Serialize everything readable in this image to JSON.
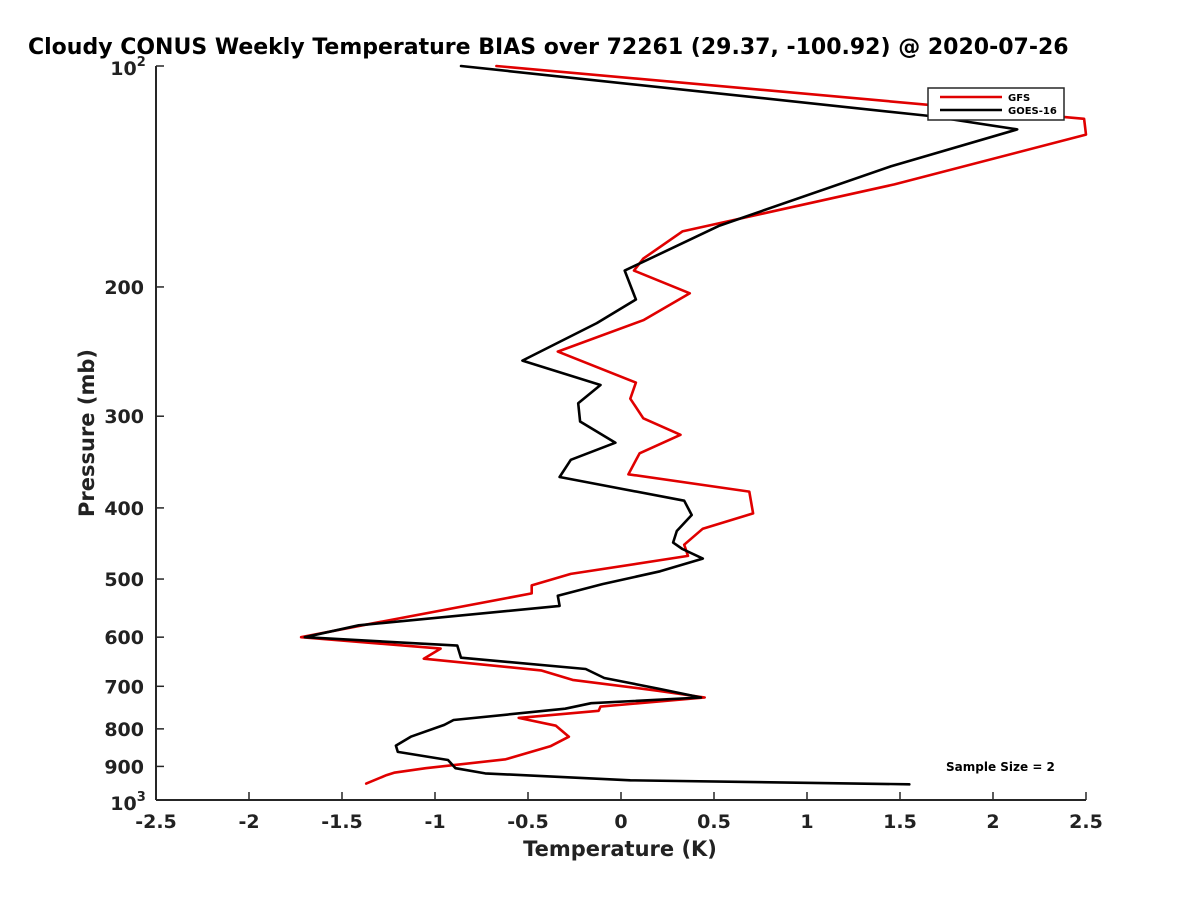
{
  "chart_data": {
    "type": "line",
    "title": "Cloudy CONUS Weekly Temperature BIAS over 72261 (29.37, -100.92) @ 2020-07-26",
    "xlabel": "Temperature (K)",
    "ylabel": "Pressure (mb)",
    "xlim": [
      -2.5,
      2.5
    ],
    "ylim": [
      100,
      1000
    ],
    "y_scale": "log",
    "y_reversed": true,
    "grid": false,
    "legend_position": "top-right",
    "x_ticks": [
      -2.5,
      -2,
      -1.5,
      -1,
      -0.5,
      0,
      0.5,
      1,
      1.5,
      2,
      2.5
    ],
    "x_tick_labels": [
      "-2.5",
      "-2",
      "-1.5",
      "-1",
      "-0.5",
      "0",
      "0.5",
      "1",
      "1.5",
      "2",
      "2.5"
    ],
    "y_ticks": [
      200,
      300,
      400,
      500,
      600,
      700,
      800,
      900
    ],
    "y_tick_labels": [
      "200",
      "300",
      "400",
      "500",
      "600",
      "700",
      "800",
      "900"
    ],
    "y_top_label": {
      "base": "10",
      "exp": "2"
    },
    "y_bottom_label": {
      "base": "10",
      "exp": "3"
    },
    "annotation": "Sample Size = 2",
    "series": [
      {
        "name": "GFS",
        "color": "#e00000",
        "points": [
          [
            -0.67,
            100
          ],
          [
            2.49,
            118
          ],
          [
            2.5,
            124
          ],
          [
            1.47,
            145
          ],
          [
            0.33,
            168
          ],
          [
            0.12,
            183
          ],
          [
            0.07,
            190
          ],
          [
            0.37,
            204
          ],
          [
            0.12,
            222
          ],
          [
            -0.34,
            245
          ],
          [
            0.08,
            270
          ],
          [
            0.05,
            284
          ],
          [
            0.12,
            302
          ],
          [
            0.32,
            318
          ],
          [
            0.1,
            337
          ],
          [
            0.04,
            360
          ],
          [
            0.69,
            380
          ],
          [
            0.71,
            407
          ],
          [
            0.44,
            427
          ],
          [
            0.34,
            449
          ],
          [
            0.36,
            465
          ],
          [
            -0.27,
            492
          ],
          [
            -0.48,
            510
          ],
          [
            -0.48,
            523
          ],
          [
            -1.39,
            578
          ],
          [
            -1.72,
            600
          ],
          [
            -0.97,
            622
          ],
          [
            -1.06,
            642
          ],
          [
            -0.43,
            666
          ],
          [
            -0.26,
            686
          ],
          [
            0.2,
            710
          ],
          [
            0.45,
            725
          ],
          [
            -0.11,
            746
          ],
          [
            -0.12,
            756
          ],
          [
            -0.55,
            773
          ],
          [
            -0.35,
            792
          ],
          [
            -0.28,
            820
          ],
          [
            -0.38,
            845
          ],
          [
            -0.62,
            880
          ],
          [
            -1.05,
            905
          ],
          [
            -1.22,
            918
          ],
          [
            -1.26,
            925
          ],
          [
            -1.37,
            950
          ]
        ]
      },
      {
        "name": "GOES-16",
        "color": "#000000",
        "points": [
          [
            -0.86,
            100
          ],
          [
            1.66,
            117
          ],
          [
            2.13,
            122
          ],
          [
            1.45,
            137
          ],
          [
            0.53,
            165
          ],
          [
            0.02,
            190
          ],
          [
            0.08,
            208
          ],
          [
            -0.13,
            224
          ],
          [
            -0.53,
            252
          ],
          [
            -0.11,
            272
          ],
          [
            -0.23,
            288
          ],
          [
            -0.22,
            305
          ],
          [
            -0.03,
            326
          ],
          [
            -0.27,
            344
          ],
          [
            -0.33,
            363
          ],
          [
            0.34,
            391
          ],
          [
            0.38,
            409
          ],
          [
            0.3,
            430
          ],
          [
            0.28,
            446
          ],
          [
            0.33,
            455
          ],
          [
            0.44,
            469
          ],
          [
            0.21,
            488
          ],
          [
            -0.1,
            508
          ],
          [
            -0.34,
            527
          ],
          [
            -0.33,
            544
          ],
          [
            -1.41,
            578
          ],
          [
            -1.7,
            600
          ],
          [
            -0.88,
            616
          ],
          [
            -0.86,
            640
          ],
          [
            -0.19,
            663
          ],
          [
            -0.09,
            682
          ],
          [
            0.2,
            705
          ],
          [
            0.43,
            725
          ],
          [
            -0.16,
            738
          ],
          [
            -0.3,
            751
          ],
          [
            -0.9,
            778
          ],
          [
            -0.95,
            790
          ],
          [
            -1.13,
            820
          ],
          [
            -1.21,
            843
          ],
          [
            -1.2,
            860
          ],
          [
            -0.93,
            882
          ],
          [
            -0.89,
            905
          ],
          [
            -0.73,
            920
          ],
          [
            0.05,
            940
          ],
          [
            1.55,
            952
          ]
        ]
      }
    ]
  }
}
